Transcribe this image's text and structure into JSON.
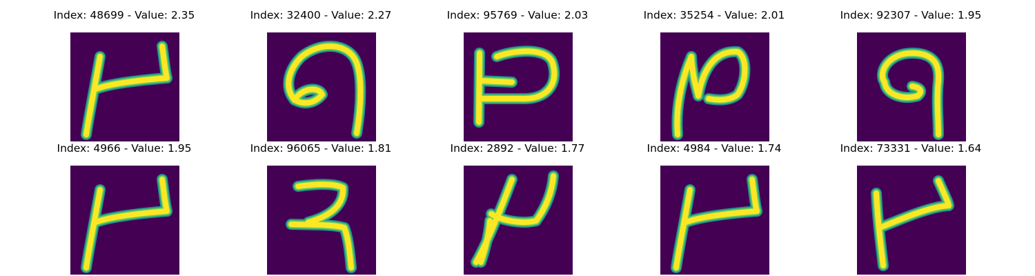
{
  "colors": {
    "background": "#440154",
    "stroke_core": "#fde725",
    "stroke_mid": "#5ec962",
    "stroke_edge": "#21918c"
  },
  "panels": [
    {
      "title": "Index: 48699 - Value: 2.35",
      "index": 48699,
      "value": 2.35,
      "glyph": "mirrored-h-shape"
    },
    {
      "title": "Index: 32400 - Value: 2.27",
      "index": 32400,
      "value": 2.27,
      "glyph": "curled-loop-9"
    },
    {
      "title": "Index: 95769 - Value: 2.03",
      "index": 95769,
      "value": 2.03,
      "glyph": "mirrored-h-shape-bold"
    },
    {
      "title": "Index: 35254 - Value: 2.01",
      "index": 35254,
      "value": 2.01,
      "glyph": "n-shape"
    },
    {
      "title": "Index: 92307 - Value: 1.95",
      "index": 92307,
      "value": 1.95,
      "glyph": "loop-9"
    },
    {
      "title": "Index: 4966 - Value: 1.95",
      "index": 4966,
      "value": 1.95,
      "glyph": "mirrored-h-shape"
    },
    {
      "title": "Index: 96065 - Value: 1.81",
      "index": 96065,
      "value": 1.81,
      "glyph": "reversed-e-3"
    },
    {
      "title": "Index: 2892 - Value: 1.77",
      "index": 2892,
      "value": 1.77,
      "glyph": "slanted-mu"
    },
    {
      "title": "Index: 4984 - Value: 1.74",
      "index": 4984,
      "value": 1.74,
      "glyph": "mirrored-h-shape"
    },
    {
      "title": "Index: 73331 - Value: 1.64",
      "index": 73331,
      "value": 1.64,
      "glyph": "mirrored-h-shape-thin"
    }
  ]
}
